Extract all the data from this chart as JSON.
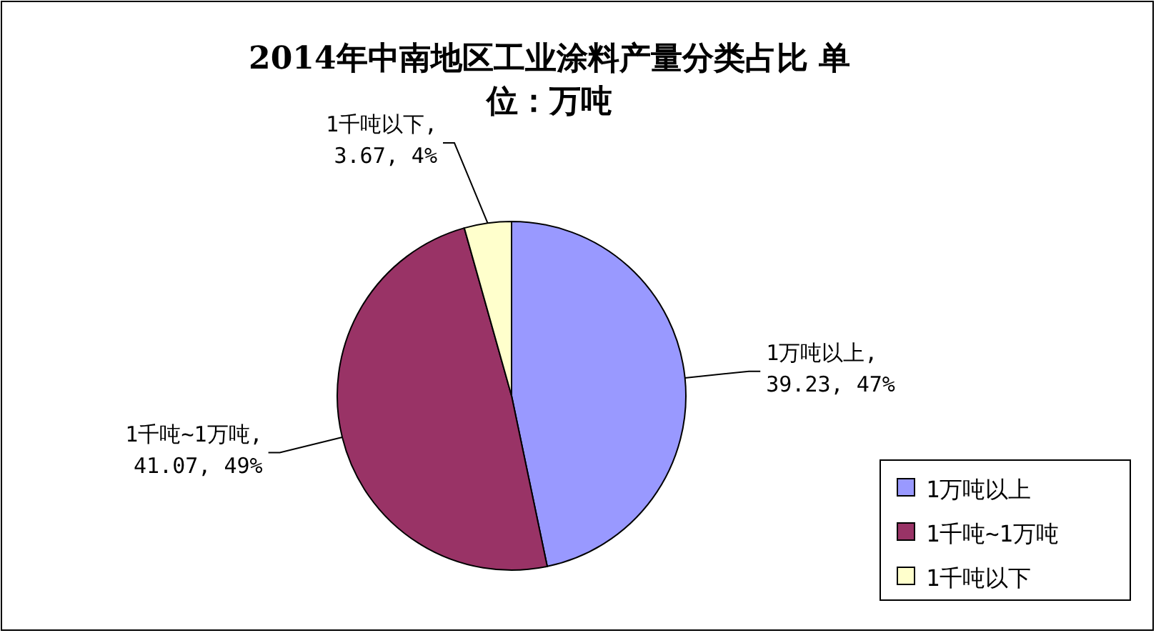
{
  "chart_data": {
    "type": "pie",
    "title": "2014年中南地区工业涂料产量分类占比 单位：万吨",
    "categories": [
      "1万吨以上",
      "1千吨~1万吨",
      "1千吨以下"
    ],
    "values": [
      39.23,
      41.07,
      3.67
    ],
    "colors": [
      "#9999ff",
      "#993366",
      "#ffffcc"
    ],
    "value_labels": [
      "1万吨以上,\n39.23, 47%",
      "1千吨~1万吨,\n41.07, 49%",
      "1千吨以下,\n3.67, 4%"
    ],
    "legend": "bottom right"
  }
}
